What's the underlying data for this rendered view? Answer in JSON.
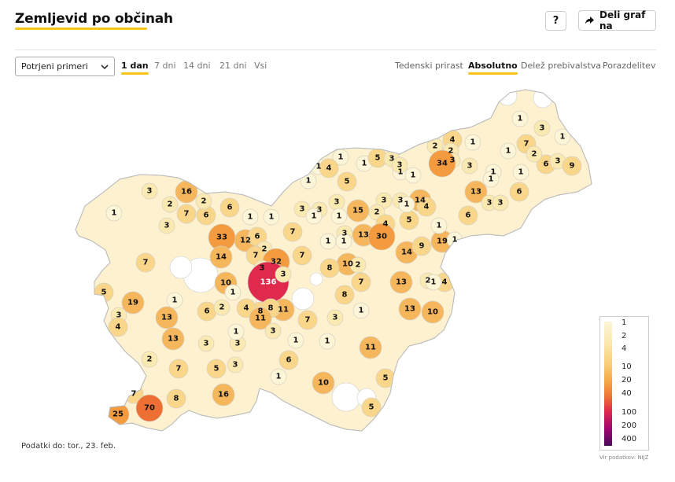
{
  "header": {
    "title": "Zemljevid po občinah",
    "help_label": "?",
    "share_label": "Deli graf na"
  },
  "controls": {
    "metric_select": "Potrjeni primeri",
    "periods": [
      {
        "label": "1 dan",
        "active": true
      },
      {
        "label": "7 dni",
        "active": false
      },
      {
        "label": "14 dni",
        "active": false
      },
      {
        "label": "21 dni",
        "active": false
      },
      {
        "label": "Vsi",
        "active": false
      }
    ],
    "modes": [
      {
        "label": "Tedenski prirast",
        "active": false
      },
      {
        "label": "Absolutno",
        "active": true
      },
      {
        "label": "Delež prebivalstva",
        "active": false
      },
      {
        "label": "Porazdelitev",
        "active": false
      }
    ]
  },
  "map": {
    "values": [
      "1",
      "3",
      "1",
      "4",
      "1",
      "7",
      "2",
      "2",
      "6",
      "3",
      "3",
      "9",
      "1",
      "1",
      "1",
      "4",
      "1",
      "1",
      "6",
      "13",
      "14",
      "3",
      "3",
      "6",
      "19",
      "1",
      "2",
      "4",
      "34",
      "3",
      "2",
      "1",
      "1",
      "1",
      "1",
      "5",
      "3",
      "3",
      "16",
      "3",
      "2",
      "7",
      "6",
      "2",
      "6",
      "1",
      "1",
      "1",
      "3",
      "5",
      "3",
      "3",
      "3",
      "3",
      "15",
      "2",
      "4",
      "3",
      "4",
      "1",
      "1",
      "3",
      "13",
      "30",
      "14",
      "9",
      "5",
      "1",
      "1",
      "12",
      "6",
      "2",
      "7",
      "7",
      "33",
      "14",
      "7",
      "1",
      "1",
      "1",
      "7",
      "32",
      "3",
      "136",
      "3",
      "10",
      "10",
      "8",
      "2",
      "7",
      "8",
      "5",
      "19",
      "1",
      "3",
      "4",
      "13",
      "6",
      "2",
      "1",
      "8",
      "11",
      "7",
      "4",
      "8",
      "11",
      "13",
      "1",
      "3",
      "10",
      "2",
      "13",
      "3",
      "7",
      "5",
      "3",
      "3",
      "1",
      "1",
      "11",
      "13",
      "1",
      "1",
      "5",
      "6",
      "1",
      "10",
      "5",
      "3",
      "16",
      "8",
      "7",
      "25",
      "70"
    ]
  },
  "legend": {
    "ticks": [
      "1",
      "2",
      "4",
      "10",
      "20",
      "40",
      "100",
      "200",
      "400"
    ],
    "colors": [
      "#fdf5d8",
      "#fcebb8",
      "#f9d88b",
      "#f5b75a",
      "#f49a3f",
      "#ee6f34",
      "#df2a4e",
      "#a3086f",
      "#5a0a63"
    ]
  },
  "footer": {
    "updated": "Podatki do: tor., 23. feb.",
    "source": "Vir podatkov: NIJZ"
  }
}
